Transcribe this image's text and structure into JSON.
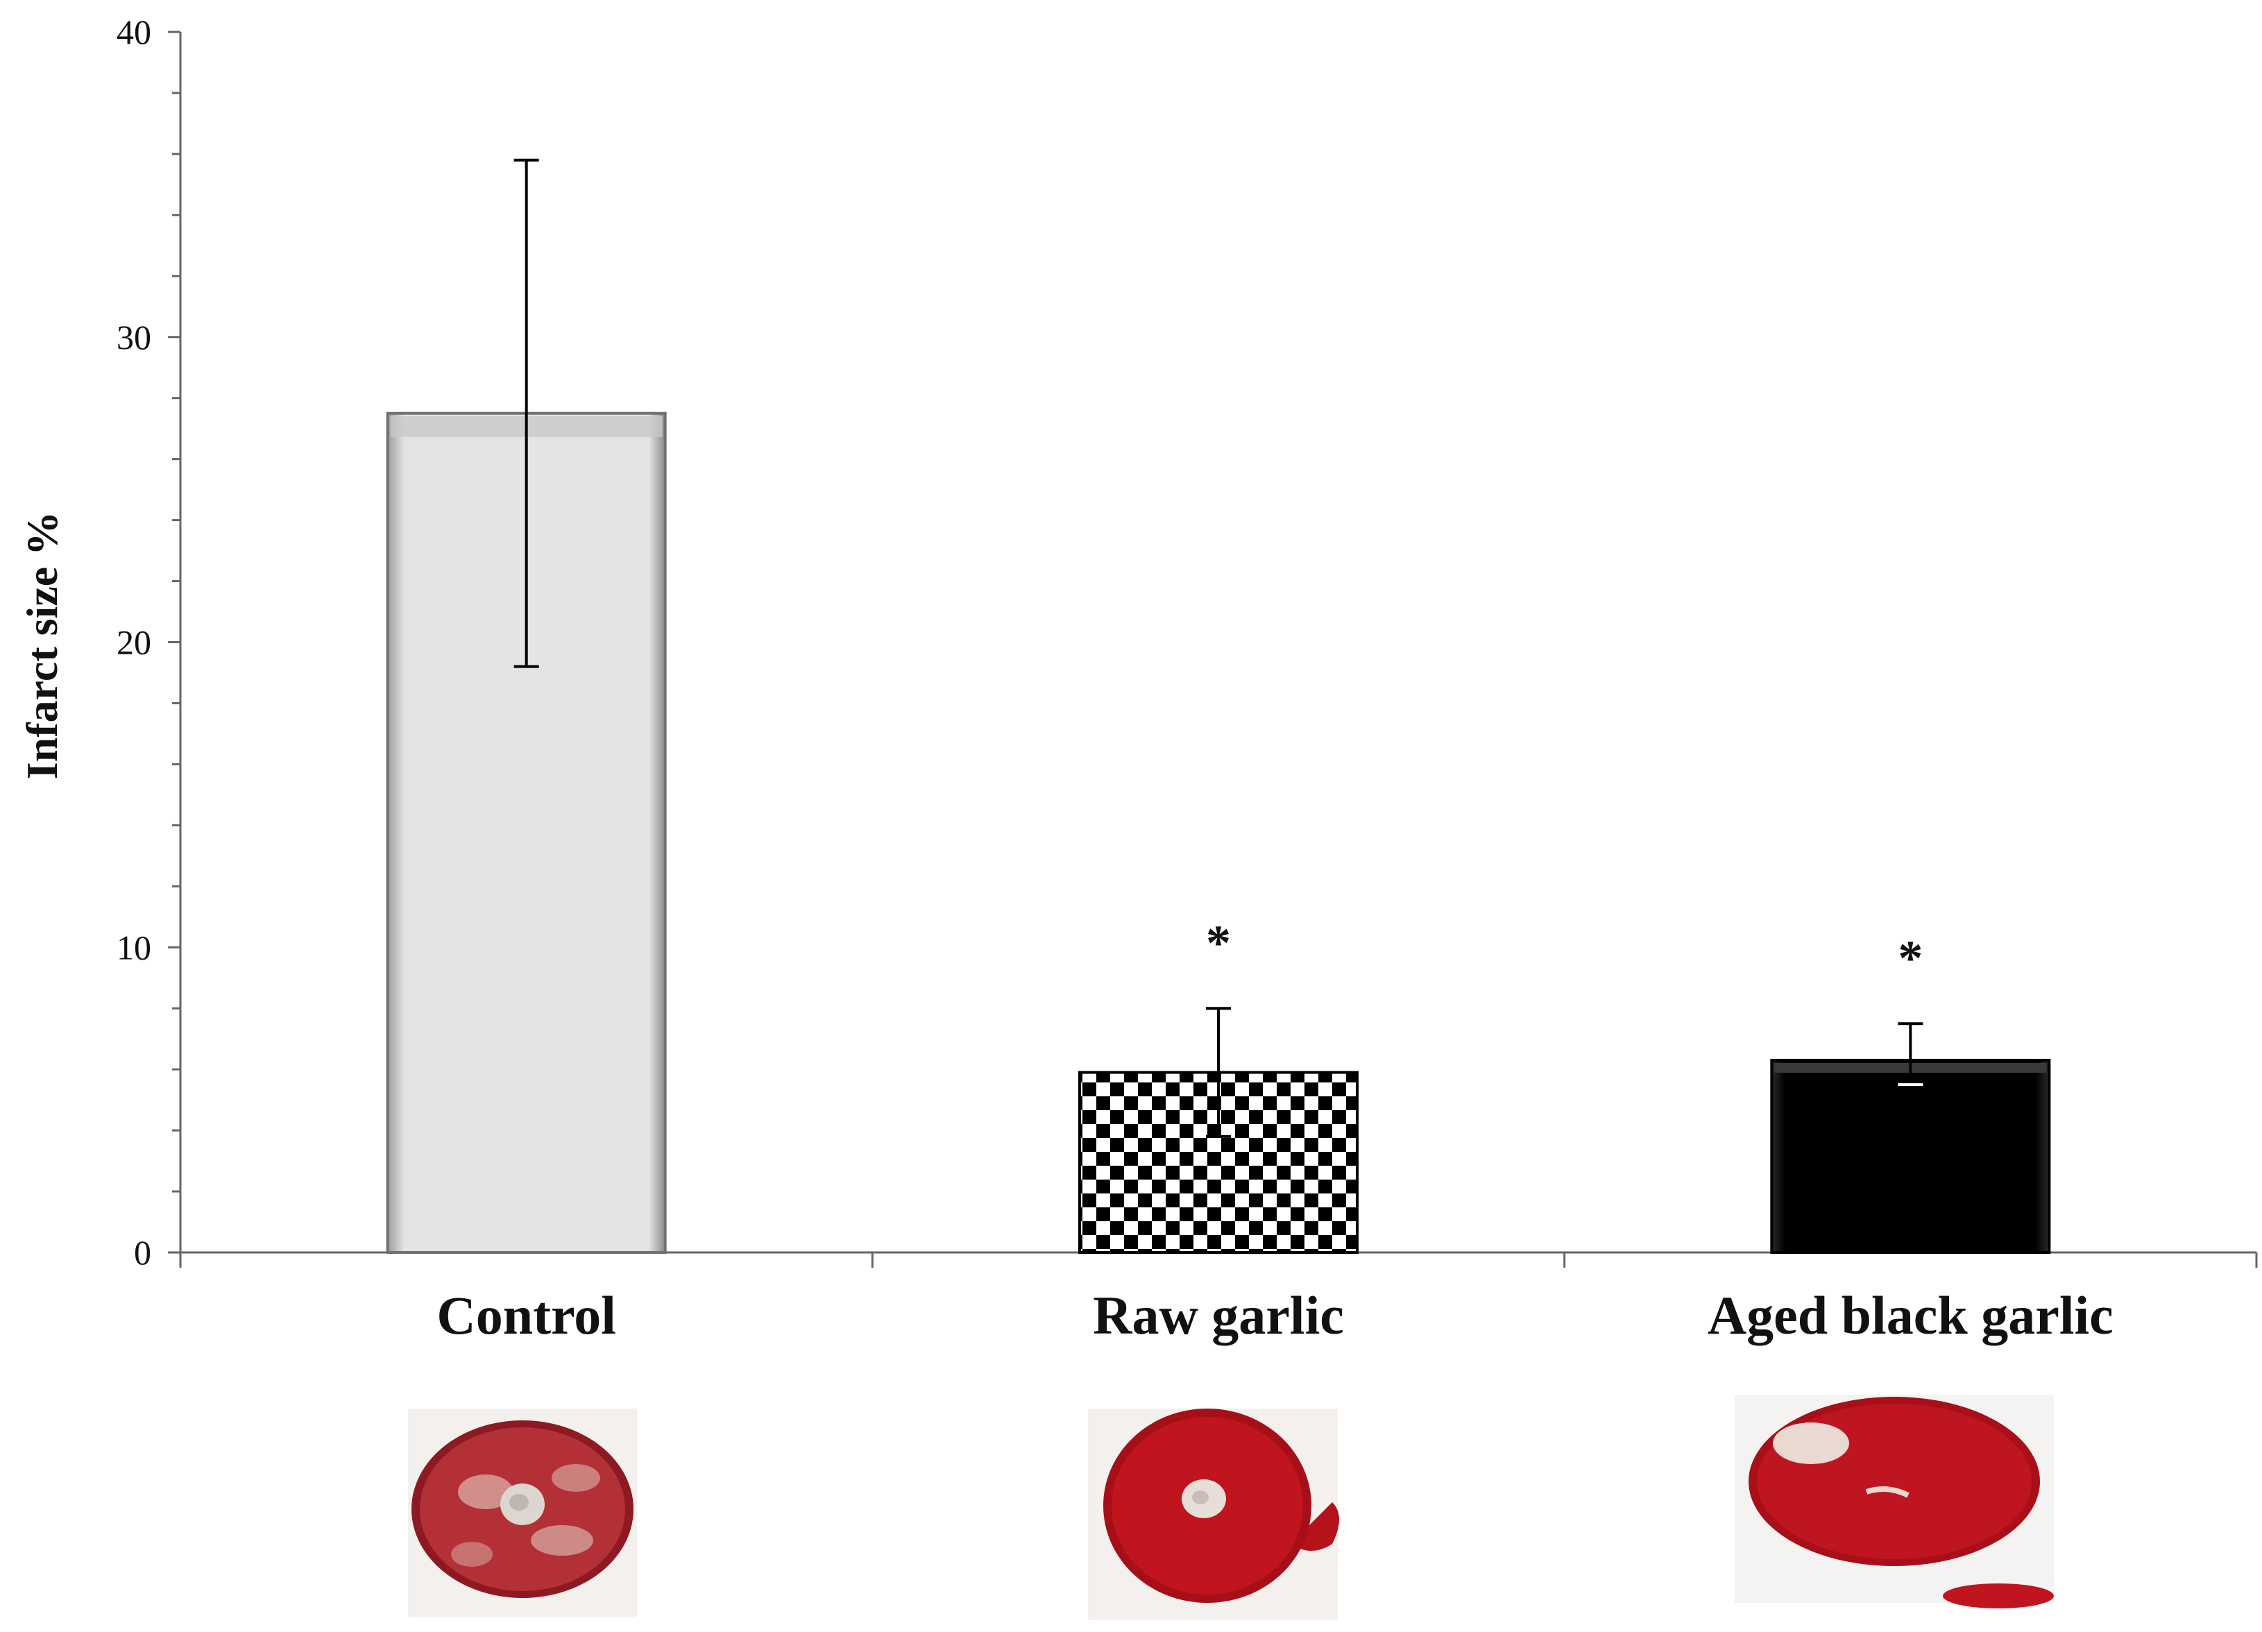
{
  "chart_data": {
    "type": "bar",
    "title": "",
    "xlabel": "",
    "ylabel": "Infarct  size %",
    "ylim": [
      0,
      40
    ],
    "yticks": [
      0,
      10,
      20,
      30,
      40
    ],
    "ytick_labels": [
      "0",
      "10",
      "20",
      "30",
      "40"
    ],
    "minor_tick_step": 2,
    "grid": false,
    "legend": "none",
    "categories": [
      "Control",
      "Raw garlic",
      "Aged black garlic"
    ],
    "values": [
      27.5,
      5.9,
      6.3
    ],
    "error_upper": [
      35.8,
      8.0,
      7.5
    ],
    "error_lower": [
      19.2,
      3.8,
      5.5
    ],
    "annotations": [
      "",
      "*",
      "*"
    ],
    "bar_styles": [
      "light-gray-bevel",
      "black-white-checkerboard",
      "black-bevel"
    ],
    "images": [
      "heart cross-section stained (control)",
      "heart cross-section stained (raw garlic)",
      "heart cross-section stained (aged black garlic)"
    ]
  },
  "colors": {
    "control_fill": "#e2e2e2",
    "control_edge": "#6b6b6b",
    "black_bar": "#000000",
    "axis": "#666666",
    "tissue_red": "#b5121b",
    "tissue_pale": "#efe0d8"
  }
}
